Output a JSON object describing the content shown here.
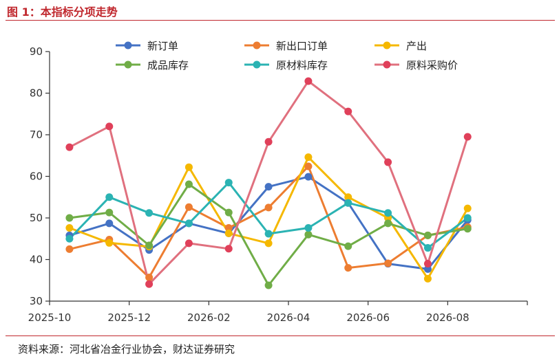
{
  "figure_title": "图 1：本指标分项走势",
  "source_note": "资料来源：河北省冶金行业协会，财达证券研究",
  "colors": {
    "title_red": "#c0272d",
    "axis": "#333333"
  },
  "chart_data": {
    "type": "line",
    "title": "",
    "xlabel": "",
    "ylabel": "",
    "ylim": [
      30,
      90
    ],
    "yticks": [
      30,
      40,
      50,
      60,
      70,
      80,
      90
    ],
    "x": [
      "2025-09",
      "2025-10",
      "2025-11",
      "2025-12",
      "2026-01",
      "2026-02",
      "2026-03",
      "2026-04",
      "2026-05",
      "2026-06",
      "2026-07",
      "2026-08"
    ],
    "x_tick_labels": [
      "2025-10",
      "2025-12",
      "2026-02",
      "2026-04",
      "2026-06",
      "2026-08"
    ],
    "grid": false,
    "legend_position": "top",
    "series": [
      {
        "name": "新订单",
        "color": "#4472c4",
        "values": [
          45.8,
          48.7,
          42.3,
          48.7,
          46.3,
          57.5,
          59.9,
          53.6,
          39.0,
          37.7,
          49.5,
          null
        ]
      },
      {
        "name": "新出口订单",
        "color": "#ed7d31",
        "values": [
          42.5,
          44.8,
          35.7,
          52.6,
          47.6,
          52.5,
          62.4,
          38.0,
          39.1,
          45.8,
          47.8,
          null
        ]
      },
      {
        "name": "产出",
        "color": "#f5b800",
        "values": [
          47.6,
          44.0,
          43.1,
          62.2,
          46.3,
          43.9,
          64.6,
          55.0,
          50.0,
          35.4,
          52.3,
          null
        ]
      },
      {
        "name": "成品库存",
        "color": "#70ad47",
        "values": [
          50.0,
          51.3,
          43.4,
          58.1,
          51.3,
          33.8,
          46.0,
          43.2,
          48.7,
          45.8,
          47.4,
          null
        ]
      },
      {
        "name": "原材料库存",
        "color": "#2bb3b3",
        "values": [
          45.0,
          55.0,
          51.2,
          48.7,
          58.5,
          46.2,
          47.6,
          53.6,
          51.2,
          42.8,
          50.0,
          null
        ]
      },
      {
        "name": "原料采购价",
        "color": "#e0707e",
        "marker_color": "#e0405a",
        "values": [
          67.0,
          72.0,
          34.1,
          43.9,
          42.6,
          68.3,
          82.9,
          75.6,
          63.4,
          39.0,
          69.5,
          null
        ]
      }
    ]
  }
}
